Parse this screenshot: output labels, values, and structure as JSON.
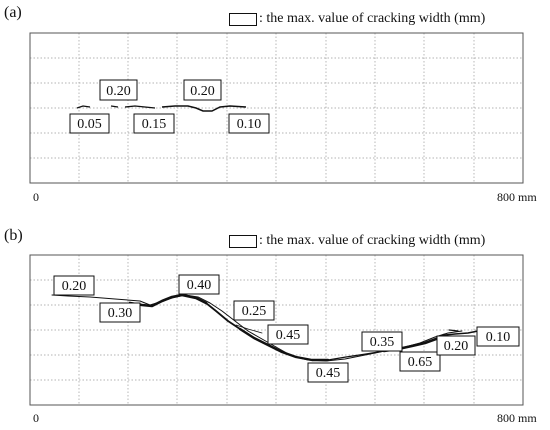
{
  "panel_a": {
    "label": "(a)",
    "legend_text": ": the max. value of cracking width (mm)",
    "axis_start": "0",
    "axis_end": "800 mm",
    "widths": [
      "0.20",
      "0.20",
      "0.05",
      "0.15",
      "0.10"
    ]
  },
  "panel_b": {
    "label": "(b)",
    "legend_text": ": the max. value of cracking width (mm)",
    "axis_start": "0",
    "axis_end": "800 mm",
    "widths": [
      "0.20",
      "0.40",
      "0.30",
      "0.25",
      "0.45",
      "0.45",
      "0.35",
      "0.65",
      "0.20",
      "0.10"
    ]
  },
  "colors": {
    "line": "#111111",
    "grid": "#9a9a9a",
    "frame": "#555555"
  }
}
